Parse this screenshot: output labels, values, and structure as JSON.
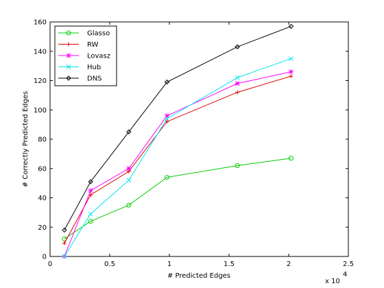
{
  "chart_data": {
    "type": "line",
    "title": "",
    "xlabel": "# Predicted Edges",
    "ylabel": "# Correctly Predicted Edges",
    "x_multiplier": "x 10",
    "x_exponent": "4",
    "xlim": [
      0,
      2.5
    ],
    "ylim": [
      0,
      160
    ],
    "xticks": [
      "0",
      "0.5",
      "1",
      "1.5",
      "2",
      "2.5"
    ],
    "yticks": [
      "0",
      "20",
      "40",
      "60",
      "80",
      "100",
      "120",
      "140",
      "160"
    ],
    "x": [
      0.12,
      0.34,
      0.66,
      0.98,
      1.57,
      2.02
    ],
    "grid": false,
    "legend_position": "top-left",
    "series": [
      {
        "name": "Glasso",
        "color": "#00cc00",
        "marker": "circle",
        "values": [
          12,
          24,
          35,
          54,
          62,
          67
        ]
      },
      {
        "name": "RW",
        "color": "#dd0000",
        "marker": "plus",
        "values": [
          9,
          42,
          58,
          92,
          112,
          123
        ]
      },
      {
        "name": "Lovasz",
        "color": "#ff00ff",
        "marker": "star",
        "values": [
          0,
          45,
          60,
          96,
          118,
          126
        ]
      },
      {
        "name": "Hub",
        "color": "#00e5e5",
        "marker": "x",
        "values": [
          0,
          29,
          52,
          94,
          122,
          135
        ]
      },
      {
        "name": "DNS",
        "color": "#000000",
        "marker": "diamond",
        "values": [
          18,
          51,
          85,
          119,
          143,
          157
        ]
      }
    ]
  }
}
